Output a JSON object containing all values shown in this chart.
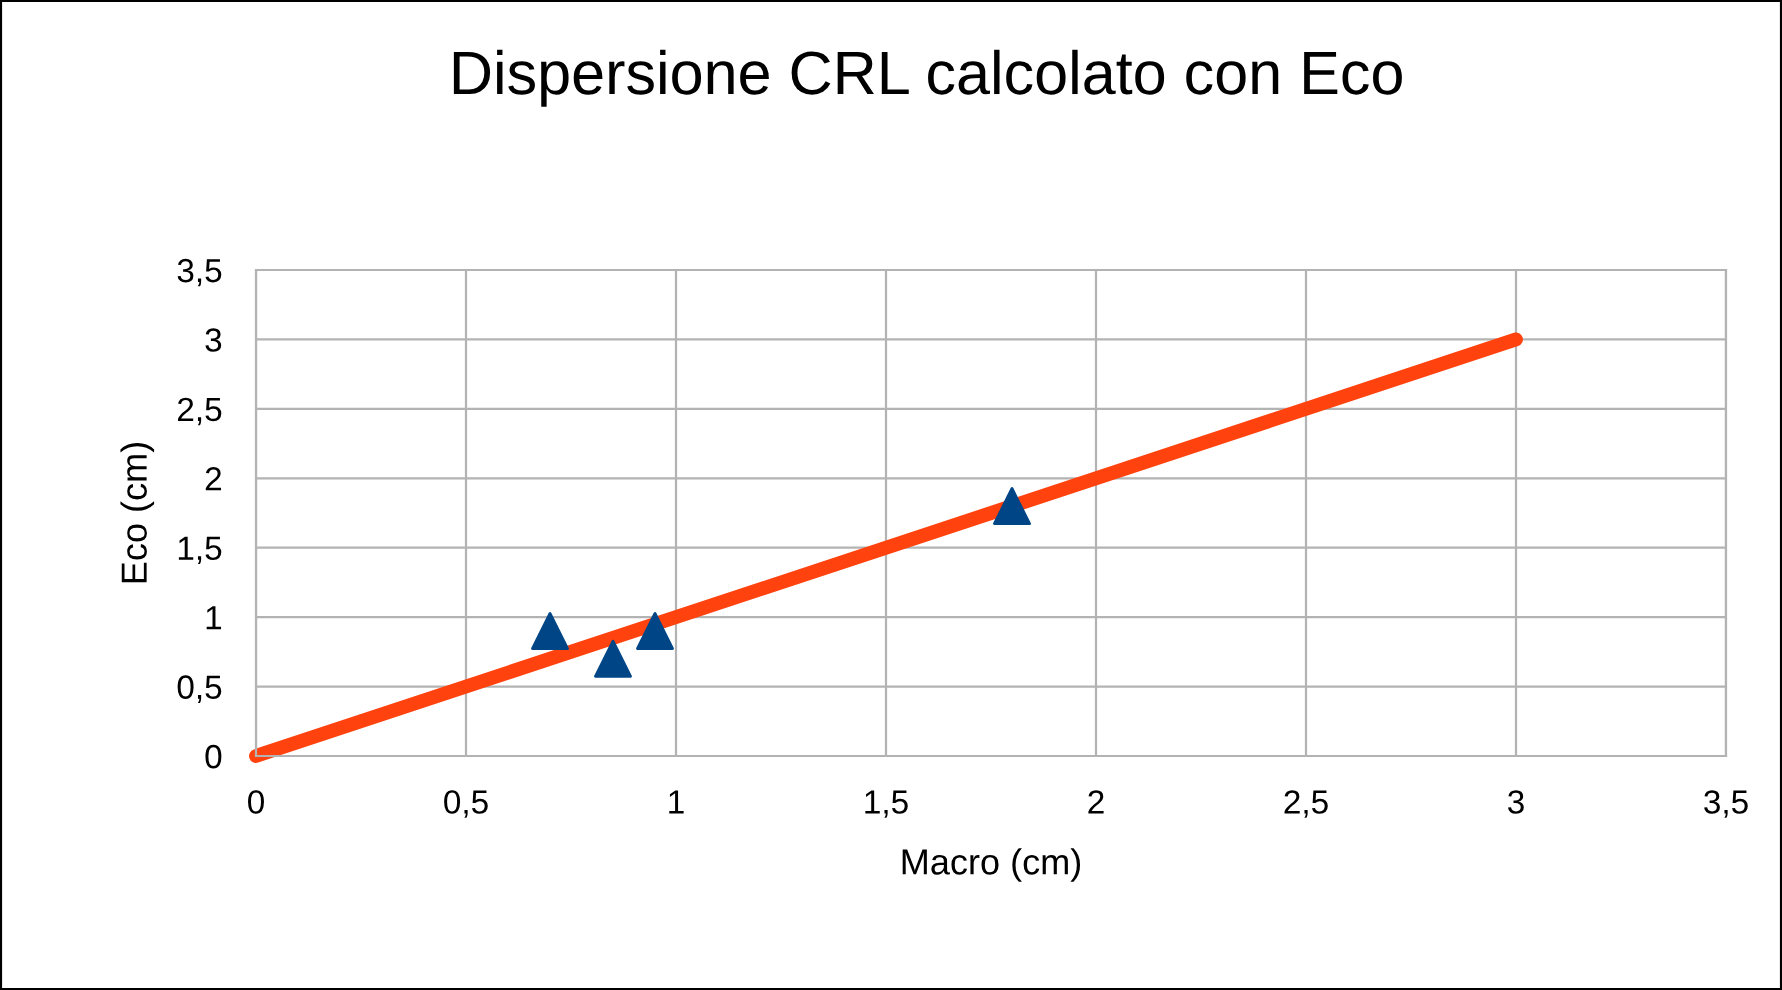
{
  "chart_data": {
    "type": "scatter",
    "title": "Dispersione CRL calcolato con Eco",
    "xlabel": "Macro (cm)",
    "ylabel": "Eco (cm)",
    "series": [
      {
        "type": "line",
        "color": "#ff420e",
        "x": [
          0,
          3
        ],
        "values": [
          0,
          3
        ]
      },
      {
        "color": "#004586",
        "x": [
          0.7,
          0.85,
          0.95,
          1.8
        ],
        "values": [
          0.9,
          0.7,
          0.9,
          1.8
        ],
        "marker": "triangle"
      }
    ],
    "xlim": [
      0,
      3.5
    ],
    "ylim": [
      0,
      3.5
    ],
    "xticks": [
      0,
      {
        "value": 0.5,
        "label": "0,5"
      },
      1,
      {
        "value": 1.5,
        "label": "1,5"
      },
      2,
      {
        "value": 2.5,
        "label": "2,5"
      },
      3,
      {
        "value": 3.5,
        "label": "3,5"
      }
    ],
    "yticks": [
      0,
      {
        "value": 0.5,
        "label": "0,5"
      },
      1,
      {
        "value": 1.5,
        "label": "1,5"
      },
      2,
      {
        "value": 2.5,
        "label": "2,5"
      },
      3,
      {
        "value": 3.5,
        "label": "3,5"
      }
    ],
    "grid": true,
    "legend": false
  }
}
